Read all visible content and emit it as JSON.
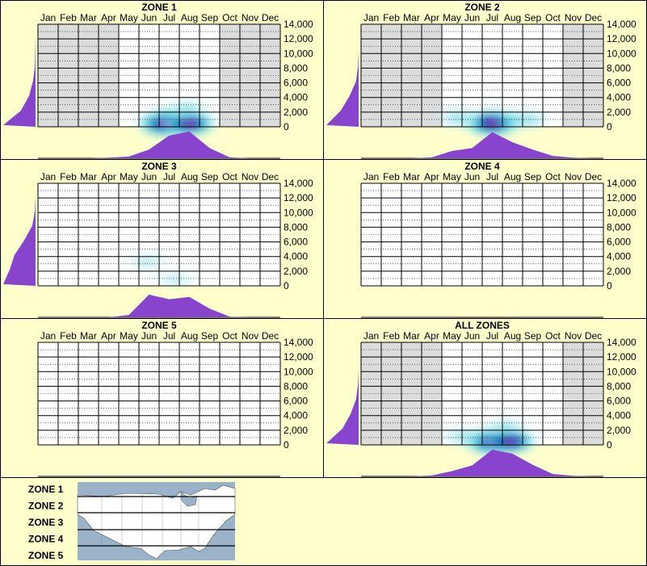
{
  "months": [
    "Jan",
    "Feb",
    "Mar",
    "Apr",
    "May",
    "Jun",
    "Jul",
    "Aug",
    "Sep",
    "Oct",
    "Nov",
    "Dec"
  ],
  "y_ticks": [
    "14,000",
    "12,000",
    "10,000",
    "8,000",
    "6,000",
    "4,000",
    "2,000",
    "0"
  ],
  "chart_data": [
    {
      "type": "heatmap",
      "title": "ZONE 1",
      "x_categories": [
        "Jan",
        "Feb",
        "Mar",
        "Apr",
        "May",
        "Jun",
        "Jul",
        "Aug",
        "Sep",
        "Oct",
        "Nov",
        "Dec"
      ],
      "ylim": [
        0,
        14000
      ],
      "shaded_months": [
        "Jan",
        "Feb",
        "Mar",
        "Apr",
        "Oct",
        "Nov",
        "Dec"
      ],
      "hotspots": [
        {
          "month": 6.3,
          "elevation": 400,
          "intensity": 1.0
        },
        {
          "month": 7.5,
          "elevation": 400,
          "intensity": 0.9
        },
        {
          "month": 7.4,
          "elevation": 2500,
          "intensity": 0.45
        },
        {
          "month": 6.5,
          "elevation": 1600,
          "intensity": 0.4
        }
      ],
      "month_profile": [
        0,
        0,
        0,
        0.02,
        0.06,
        0.3,
        0.78,
        0.92,
        0.35,
        0.03,
        0,
        0
      ],
      "elevation_profile": [
        1.0,
        0.45,
        0.2,
        0.08,
        0.02,
        0.01,
        0,
        0
      ]
    },
    {
      "type": "heatmap",
      "title": "ZONE 2",
      "x_categories": [
        "Jan",
        "Feb",
        "Mar",
        "Apr",
        "May",
        "Jun",
        "Jul",
        "Aug",
        "Sep",
        "Oct",
        "Nov",
        "Dec"
      ],
      "ylim": [
        0,
        14000
      ],
      "shaded_months": [
        "Jan",
        "Feb",
        "Mar",
        "Apr",
        "Nov",
        "Dec"
      ],
      "hotspots": [
        {
          "month": 6.5,
          "elevation": 500,
          "intensity": 1.0
        },
        {
          "month": 4.8,
          "elevation": 1200,
          "intensity": 0.6
        },
        {
          "month": 7.6,
          "elevation": 900,
          "intensity": 0.55
        },
        {
          "month": 8.4,
          "elevation": 1000,
          "intensity": 0.4
        }
      ],
      "month_profile": [
        0,
        0,
        0,
        0.03,
        0.25,
        0.35,
        0.9,
        0.55,
        0.3,
        0.08,
        0.02,
        0
      ],
      "elevation_profile": [
        1.0,
        0.55,
        0.28,
        0.08,
        0.02,
        0,
        0,
        0
      ]
    },
    {
      "type": "heatmap",
      "title": "ZONE 3",
      "x_categories": [
        "Jan",
        "Feb",
        "Mar",
        "Apr",
        "May",
        "Jun",
        "Jul",
        "Aug",
        "Sep",
        "Oct",
        "Nov",
        "Dec"
      ],
      "ylim": [
        0,
        14000
      ],
      "shaded_months": [],
      "hotspots": [
        {
          "month": 5.4,
          "elevation": 3300,
          "intensity": 0.3
        },
        {
          "month": 6.8,
          "elevation": 900,
          "intensity": 0.25
        }
      ],
      "month_profile": [
        0,
        0,
        0,
        0,
        0.08,
        0.78,
        0.62,
        0.7,
        0.3,
        0.02,
        0,
        0
      ],
      "elevation_profile": [
        1.0,
        0.8,
        0.65,
        0.35,
        0.1,
        0.02,
        0,
        0
      ]
    },
    {
      "type": "heatmap",
      "title": "ZONE 4",
      "x_categories": [
        "Jan",
        "Feb",
        "Mar",
        "Apr",
        "May",
        "Jun",
        "Jul",
        "Aug",
        "Sep",
        "Oct",
        "Nov",
        "Dec"
      ],
      "ylim": [
        0,
        14000
      ],
      "shaded_months": [],
      "hotspots": [],
      "month_profile": [],
      "elevation_profile": []
    },
    {
      "type": "heatmap",
      "title": "ZONE 5",
      "x_categories": [
        "Jan",
        "Feb",
        "Mar",
        "Apr",
        "May",
        "Jun",
        "Jul",
        "Aug",
        "Sep",
        "Oct",
        "Nov",
        "Dec"
      ],
      "ylim": [
        0,
        14000
      ],
      "shaded_months": [],
      "hotspots": [],
      "month_profile": [],
      "elevation_profile": []
    },
    {
      "type": "heatmap",
      "title": "ALL ZONES",
      "x_categories": [
        "Jan",
        "Feb",
        "Mar",
        "Apr",
        "May",
        "Jun",
        "Jul",
        "Aug",
        "Sep",
        "Oct",
        "Nov",
        "Dec"
      ],
      "ylim": [
        0,
        14000
      ],
      "shaded_months": [
        "Jan",
        "Feb",
        "Mar",
        "Apr",
        "Nov",
        "Dec"
      ],
      "hotspots": [
        {
          "month": 6.5,
          "elevation": 400,
          "intensity": 1.0
        },
        {
          "month": 7.4,
          "elevation": 500,
          "intensity": 0.85
        },
        {
          "month": 5.0,
          "elevation": 1100,
          "intensity": 0.5
        },
        {
          "month": 7.2,
          "elevation": 2600,
          "intensity": 0.35
        }
      ],
      "month_profile": [
        0,
        0,
        0,
        0.03,
        0.18,
        0.38,
        0.92,
        0.78,
        0.4,
        0.08,
        0.02,
        0
      ],
      "elevation_profile": [
        1.0,
        0.5,
        0.25,
        0.08,
        0.02,
        0,
        0,
        0
      ]
    }
  ],
  "legend": {
    "zones": [
      "ZONE 1",
      "ZONE 2",
      "ZONE 3",
      "ZONE 4",
      "ZONE 5"
    ],
    "map_name": "zone-map"
  },
  "colors": {
    "background": "#ffffcc",
    "grid_line": "#000000",
    "shaded_month": "#dcdcdc",
    "profile_fill": "#8844cc",
    "heat_low": "#aaf0f0",
    "heat_mid": "#00aacc",
    "heat_high": "#0000aa",
    "heat_peak": "#ff00aa",
    "map_water": "#9ab3c8",
    "map_land": "#ffffff"
  }
}
